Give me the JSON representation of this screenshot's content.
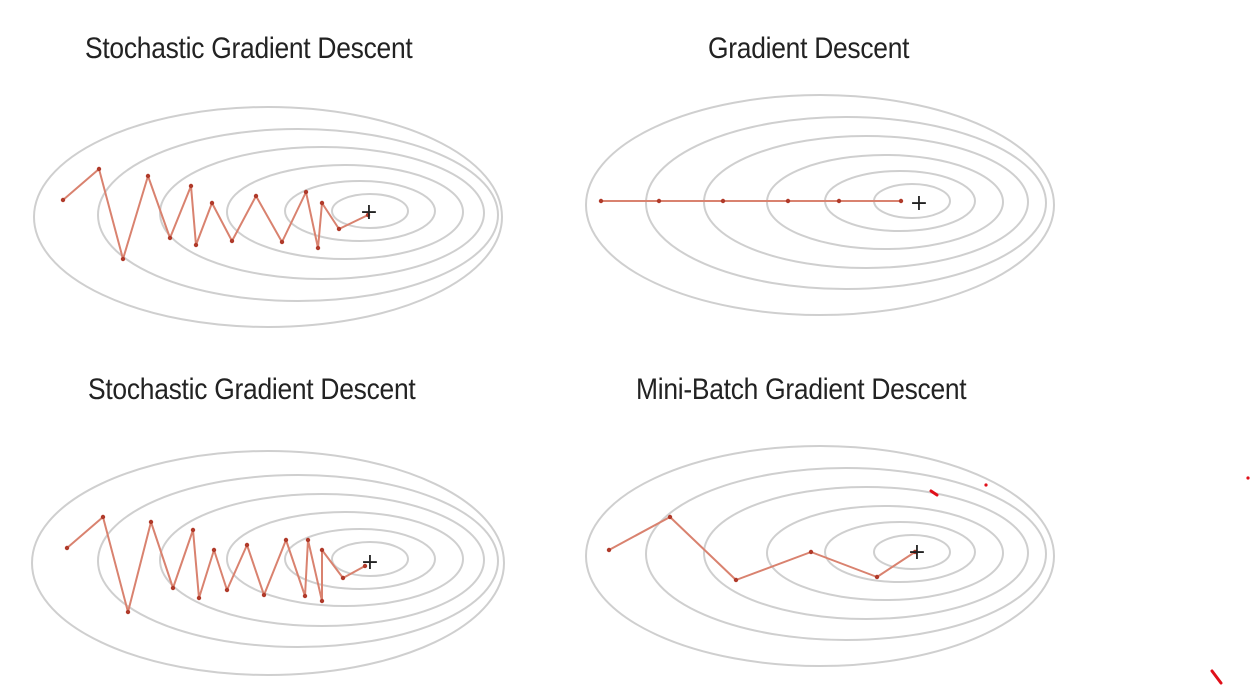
{
  "panels": [
    {
      "id": "sgd-top",
      "title": "Stochastic Gradient Descent",
      "optimum_symbol": "+"
    },
    {
      "id": "gd",
      "title": "Gradient Descent",
      "optimum_symbol": "+"
    },
    {
      "id": "sgd-bottom",
      "title": "Stochastic Gradient Descent",
      "optimum_symbol": "+"
    },
    {
      "id": "mini-batch",
      "title": "Mini-Batch Gradient Descent",
      "optimum_symbol": "+"
    }
  ],
  "colors": {
    "contour": "#cfcfcf",
    "path": "#d9826f",
    "marker": "#b03a2a",
    "optimum": "#222222",
    "annotation": "#e0101a",
    "background": "#ffffff"
  }
}
